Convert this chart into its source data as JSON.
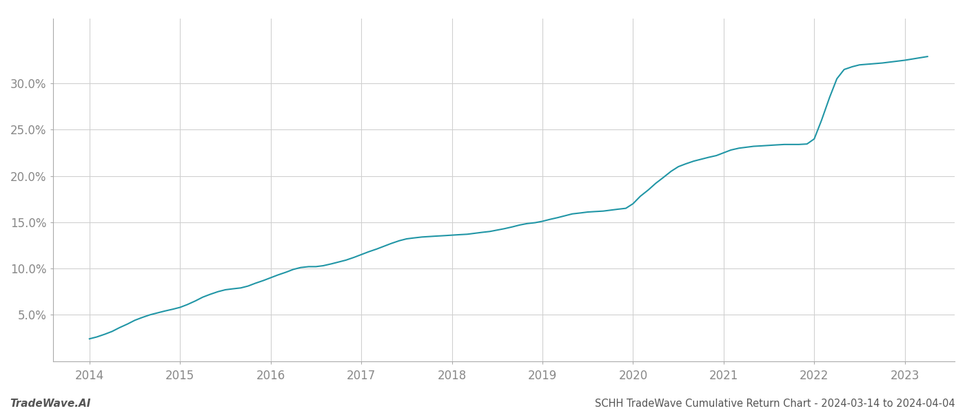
{
  "title": "SCHH TradeWave Cumulative Return Chart - 2024-03-14 to 2024-04-04",
  "watermark": "TradeWave.AI",
  "line_color": "#2196a6",
  "background_color": "#ffffff",
  "grid_color": "#d0d0d0",
  "x_values": [
    2014.0,
    2014.08,
    2014.17,
    2014.25,
    2014.33,
    2014.42,
    2014.5,
    2014.58,
    2014.67,
    2014.75,
    2014.83,
    2014.92,
    2015.0,
    2015.08,
    2015.17,
    2015.25,
    2015.33,
    2015.42,
    2015.5,
    2015.58,
    2015.67,
    2015.75,
    2015.83,
    2015.92,
    2016.0,
    2016.08,
    2016.17,
    2016.25,
    2016.33,
    2016.42,
    2016.5,
    2016.58,
    2016.67,
    2016.75,
    2016.83,
    2016.92,
    2017.0,
    2017.08,
    2017.17,
    2017.25,
    2017.33,
    2017.42,
    2017.5,
    2017.58,
    2017.67,
    2017.75,
    2017.83,
    2017.92,
    2018.0,
    2018.08,
    2018.17,
    2018.25,
    2018.33,
    2018.42,
    2018.5,
    2018.58,
    2018.67,
    2018.75,
    2018.83,
    2018.92,
    2019.0,
    2019.08,
    2019.17,
    2019.25,
    2019.33,
    2019.42,
    2019.5,
    2019.58,
    2019.67,
    2019.75,
    2019.83,
    2019.92,
    2020.0,
    2020.08,
    2020.17,
    2020.25,
    2020.33,
    2020.42,
    2020.5,
    2020.58,
    2020.67,
    2020.75,
    2020.83,
    2020.92,
    2021.0,
    2021.08,
    2021.17,
    2021.25,
    2021.33,
    2021.42,
    2021.5,
    2021.58,
    2021.67,
    2021.75,
    2021.83,
    2021.92,
    2022.0,
    2022.08,
    2022.17,
    2022.25,
    2022.33,
    2022.42,
    2022.5,
    2022.75,
    2023.0,
    2023.25
  ],
  "y_values": [
    2.4,
    2.6,
    2.9,
    3.2,
    3.6,
    4.0,
    4.4,
    4.7,
    5.0,
    5.2,
    5.4,
    5.6,
    5.8,
    6.1,
    6.5,
    6.9,
    7.2,
    7.5,
    7.7,
    7.8,
    7.9,
    8.1,
    8.4,
    8.7,
    9.0,
    9.3,
    9.6,
    9.9,
    10.1,
    10.2,
    10.2,
    10.3,
    10.5,
    10.7,
    10.9,
    11.2,
    11.5,
    11.8,
    12.1,
    12.4,
    12.7,
    13.0,
    13.2,
    13.3,
    13.4,
    13.45,
    13.5,
    13.55,
    13.6,
    13.65,
    13.7,
    13.8,
    13.9,
    14.0,
    14.15,
    14.3,
    14.5,
    14.7,
    14.85,
    14.95,
    15.1,
    15.3,
    15.5,
    15.7,
    15.9,
    16.0,
    16.1,
    16.15,
    16.2,
    16.3,
    16.4,
    16.5,
    17.0,
    17.8,
    18.5,
    19.2,
    19.8,
    20.5,
    21.0,
    21.3,
    21.6,
    21.8,
    22.0,
    22.2,
    22.5,
    22.8,
    23.0,
    23.1,
    23.2,
    23.25,
    23.3,
    23.35,
    23.4,
    23.4,
    23.4,
    23.45,
    24.0,
    26.0,
    28.5,
    30.5,
    31.5,
    31.8,
    32.0,
    32.2,
    32.5,
    32.9
  ],
  "xlim": [
    2013.6,
    2023.55
  ],
  "ylim": [
    0.0,
    37.0
  ],
  "yticks": [
    5.0,
    10.0,
    15.0,
    20.0,
    25.0,
    30.0
  ],
  "xticks": [
    2014,
    2015,
    2016,
    2017,
    2018,
    2019,
    2020,
    2021,
    2022,
    2023
  ],
  "title_fontsize": 10.5,
  "tick_fontsize": 12,
  "watermark_fontsize": 11,
  "line_width": 1.5
}
